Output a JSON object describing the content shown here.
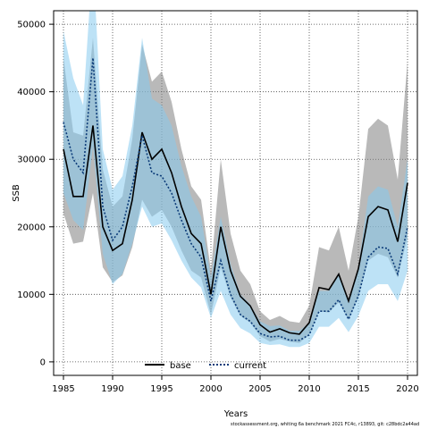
{
  "chart_data": {
    "type": "line",
    "title": "",
    "xlabel": "Years",
    "ylabel": "SSB",
    "xlim": [
      1984,
      2021
    ],
    "ylim": [
      -2000,
      52000
    ],
    "x_ticks": [
      1985,
      1990,
      1995,
      2000,
      2005,
      2010,
      2015,
      2020
    ],
    "y_ticks": [
      0,
      10000,
      20000,
      30000,
      40000,
      50000
    ],
    "y_tick_labels": [
      "0",
      "10000",
      "20000",
      "30000",
      "40000",
      "50000"
    ],
    "grid": true,
    "legend_position": "bottom-center",
    "x": [
      1985,
      1986,
      1987,
      1988,
      1989,
      1990,
      1991,
      1992,
      1993,
      1994,
      1995,
      1996,
      1997,
      1998,
      1999,
      2000,
      2001,
      2002,
      2003,
      2004,
      2005,
      2006,
      2007,
      2008,
      2009,
      2010,
      2011,
      2012,
      2013,
      2014,
      2015,
      2016,
      2017,
      2018,
      2019,
      2020
    ],
    "series": [
      {
        "name": "base",
        "style": "solid",
        "color": "#000000",
        "band_color": "#808080",
        "values": [
          31500,
          24500,
          24500,
          35000,
          20000,
          16500,
          17500,
          24000,
          34000,
          30000,
          31500,
          28000,
          23000,
          19000,
          17500,
          10000,
          20000,
          13500,
          9700,
          8300,
          5500,
          4400,
          4900,
          4300,
          4100,
          5800,
          11000,
          10700,
          13000,
          9000,
          13800,
          21500,
          23000,
          22500,
          17800,
          26500
        ],
        "lower": [
          22000,
          17500,
          17800,
          25000,
          14000,
          11800,
          12800,
          17000,
          24000,
          21500,
          22500,
          20000,
          16500,
          13500,
          12500,
          7000,
          14000,
          9500,
          6800,
          5800,
          3800,
          3000,
          3400,
          3000,
          2800,
          4000,
          7500,
          7300,
          8800,
          6200,
          9500,
          15000,
          16000,
          15500,
          12500,
          18500
        ],
        "upper": [
          45000,
          34000,
          33500,
          48000,
          28500,
          23000,
          24500,
          33000,
          47000,
          41500,
          43000,
          38500,
          31500,
          26000,
          24000,
          13500,
          30000,
          19000,
          13500,
          11500,
          7500,
          6200,
          6800,
          6000,
          5800,
          8300,
          17000,
          16500,
          20000,
          13500,
          21500,
          34500,
          36000,
          35000,
          27000,
          44500
        ]
      },
      {
        "name": "current",
        "style": "dotted",
        "color": "#0a3a78",
        "band_color": "#87cbee",
        "values": [
          35500,
          30000,
          28000,
          45000,
          23000,
          18000,
          20000,
          26000,
          33500,
          28000,
          27500,
          25000,
          21000,
          17500,
          15500,
          9000,
          15000,
          10000,
          7000,
          6000,
          4200,
          3700,
          3800,
          3200,
          3200,
          4000,
          7500,
          7500,
          9200,
          6300,
          9800,
          15500,
          17000,
          16800,
          13000,
          20000
        ],
        "lower": [
          25000,
          21000,
          19500,
          32000,
          16000,
          11500,
          13000,
          17500,
          23000,
          20000,
          20500,
          18000,
          15000,
          12500,
          11000,
          6500,
          10500,
          7000,
          5000,
          4200,
          2800,
          2500,
          2600,
          2200,
          2200,
          2800,
          5200,
          5200,
          6500,
          4400,
          6800,
          10500,
          11500,
          11500,
          9000,
          13500
        ],
        "upper": [
          49000,
          42000,
          38000,
          60000,
          31500,
          25500,
          27500,
          35000,
          48000,
          39000,
          38000,
          35000,
          29000,
          24500,
          21500,
          12500,
          21500,
          14500,
          10000,
          8500,
          6000,
          5300,
          5400,
          4600,
          4600,
          5800,
          10500,
          10500,
          12800,
          9000,
          14000,
          24500,
          26000,
          25500,
          20000,
          30000
        ]
      }
    ]
  },
  "legend": {
    "base_label": "base",
    "current_label": "current"
  },
  "footer": "stockassessment.org, whiting 6a benchmark 2021 FC4c, r13893, git: c28bdc2a44ad"
}
